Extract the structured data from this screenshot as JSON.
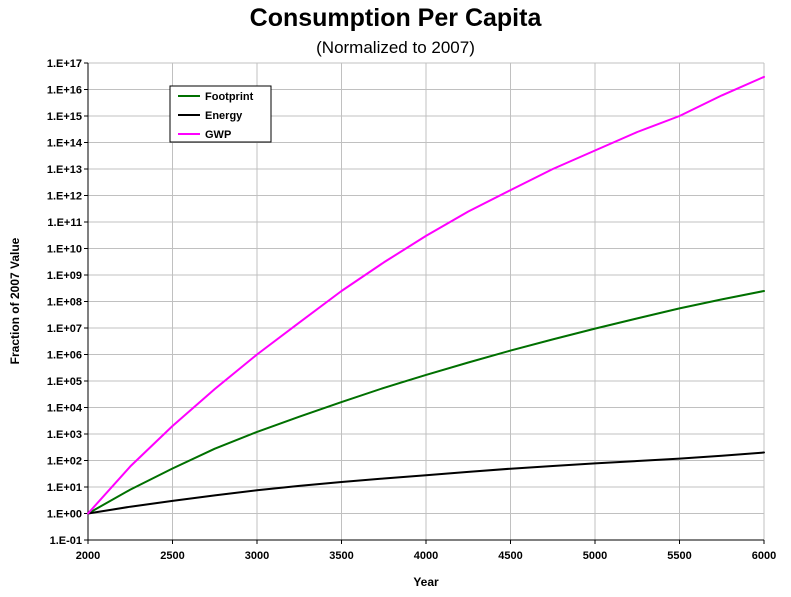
{
  "chart_data": {
    "type": "line",
    "title": "Consumption Per Capita",
    "subtitle": "(Normalized to 2007)",
    "xlabel": "Year",
    "ylabel": "Fraction of 2007 Value",
    "xlim": [
      2000,
      6000
    ],
    "x_ticks": [
      2000,
      2500,
      3000,
      3500,
      4000,
      4500,
      5000,
      5500,
      6000
    ],
    "x_tick_labels": [
      "2000",
      "2500",
      "3000",
      "3500",
      "4000",
      "4500",
      "5000",
      "5500",
      "6000"
    ],
    "y_scale": "log",
    "ylim": [
      0.1,
      1e+17
    ],
    "y_tick_labels": [
      "1.E-01",
      "1.E+00",
      "1.E+01",
      "1.E+02",
      "1.E+03",
      "1.E+04",
      "1.E+05",
      "1.E+06",
      "1.E+07",
      "1.E+08",
      "1.E+09",
      "1.E+10",
      "1.E+11",
      "1.E+12",
      "1.E+13",
      "1.E+14",
      "1.E+15",
      "1.E+16",
      "1.E+17"
    ],
    "grid": true,
    "legend_position": "top-left",
    "x": [
      2000,
      2250,
      2500,
      2750,
      3000,
      3250,
      3500,
      3750,
      4000,
      4250,
      4500,
      4750,
      5000,
      5250,
      5500,
      5750,
      6000
    ],
    "series": [
      {
        "name": "Footprint",
        "color": "#007000",
        "values": [
          1,
          8,
          50,
          280,
          1200,
          4500,
          16000,
          55000,
          170000,
          500000,
          1400000,
          3700000,
          9500000,
          23000000.0,
          55000000.0,
          120000000.0,
          250000000.0
        ]
      },
      {
        "name": "Energy",
        "color": "#000000",
        "values": [
          1,
          1.8,
          3,
          4.8,
          7.5,
          11,
          15.5,
          21,
          28,
          37,
          49,
          62,
          78,
          96,
          118,
          150,
          200
        ]
      },
      {
        "name": "GWP",
        "color": "#ff00ff",
        "values": [
          1,
          60,
          2000,
          50000,
          1000000,
          16000000.0,
          250000000.0,
          3000000000.0,
          30000000000.0,
          250000000000.0,
          1600000000000.0,
          10000000000000.0,
          50000000000000.0,
          250000000000000.0,
          1000000000000000.0,
          6000000000000000.0,
          3e+16
        ]
      }
    ]
  }
}
